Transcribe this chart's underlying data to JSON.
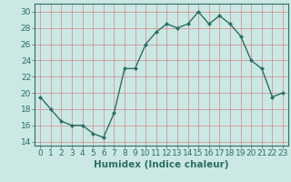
{
  "x": [
    0,
    1,
    2,
    3,
    4,
    5,
    6,
    7,
    8,
    9,
    10,
    11,
    12,
    13,
    14,
    15,
    16,
    17,
    18,
    19,
    20,
    21,
    22,
    23
  ],
  "y": [
    19.5,
    18.0,
    16.5,
    16.0,
    16.0,
    15.0,
    14.5,
    17.5,
    23.0,
    23.0,
    26.0,
    27.5,
    28.5,
    28.0,
    28.5,
    30.0,
    28.5,
    29.5,
    28.5,
    27.0,
    24.0,
    23.0,
    19.5,
    20.0
  ],
  "bg_color": "#cbe8e4",
  "line_color": "#2d6e66",
  "marker": "D",
  "marker_size": 2.0,
  "line_width": 1.0,
  "xlabel": "Humidex (Indice chaleur)",
  "xlim": [
    -0.5,
    23.5
  ],
  "ylim": [
    13.5,
    31.0
  ],
  "yticks": [
    14,
    16,
    18,
    20,
    22,
    24,
    26,
    28,
    30
  ],
  "xticks": [
    0,
    1,
    2,
    3,
    4,
    5,
    6,
    7,
    8,
    9,
    10,
    11,
    12,
    13,
    14,
    15,
    16,
    17,
    18,
    19,
    20,
    21,
    22,
    23
  ],
  "grid_color": "#d08888",
  "xlabel_fontsize": 7.5,
  "tick_fontsize": 6.5
}
